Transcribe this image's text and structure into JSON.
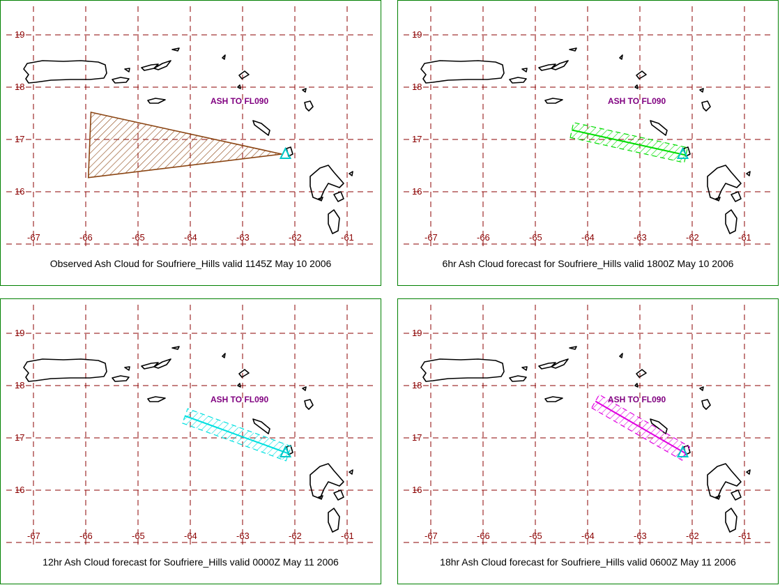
{
  "colors": {
    "grid": "#8b0000",
    "tick_labels": "#8b0000",
    "panel_border": "#008000",
    "annotation": "#800080",
    "volcano_marker": "#00c8c8"
  },
  "axis": {
    "lon_ticks": [
      -67,
      -66,
      -65,
      -64,
      -63,
      -62,
      -61
    ],
    "lat_ticks": [
      19,
      18,
      17,
      16
    ]
  },
  "volcano": {
    "name": "Soufriere_Hills",
    "lon": -62.18,
    "lat": 16.72,
    "icon": "volcano-triangle-icon"
  },
  "panels": [
    {
      "caption": "Observed Ash Cloud for Soufriere_Hills valid 1145Z May 10 2006",
      "annotation": "ASH TO FL090",
      "cloud_color": "#8b4513",
      "cloud_type": "polygon",
      "cloud_lonlat": [
        [
          -65.9,
          17.52
        ],
        [
          -62.25,
          16.72
        ],
        [
          -65.95,
          16.27
        ]
      ]
    },
    {
      "caption": "6hr Ash Cloud forecast for Soufriere_Hills valid 1800Z May 10 2006",
      "annotation": "ASH TO FL090",
      "cloud_color": "#00dd00",
      "cloud_type": "band",
      "cloud_lonlat": [
        [
          -64.3,
          17.18
        ],
        [
          -62.12,
          16.7
        ]
      ]
    },
    {
      "caption": "12hr Ash Cloud forecast for Soufriere_Hills valid 0000Z May 11 2006",
      "annotation": "ASH TO FL090",
      "cloud_color": "#00e0e0",
      "cloud_type": "band",
      "cloud_lonlat": [
        [
          -64.1,
          17.42
        ],
        [
          -62.12,
          16.7
        ]
      ]
    },
    {
      "caption": "18hr Ash Cloud forecast for Soufriere_Hills valid 0600Z May 11 2006",
      "annotation": "ASH TO FL090",
      "cloud_color": "#e000e0",
      "cloud_type": "band",
      "cloud_lonlat": [
        [
          -63.85,
          17.7
        ],
        [
          -62.12,
          16.7
        ]
      ]
    }
  ]
}
